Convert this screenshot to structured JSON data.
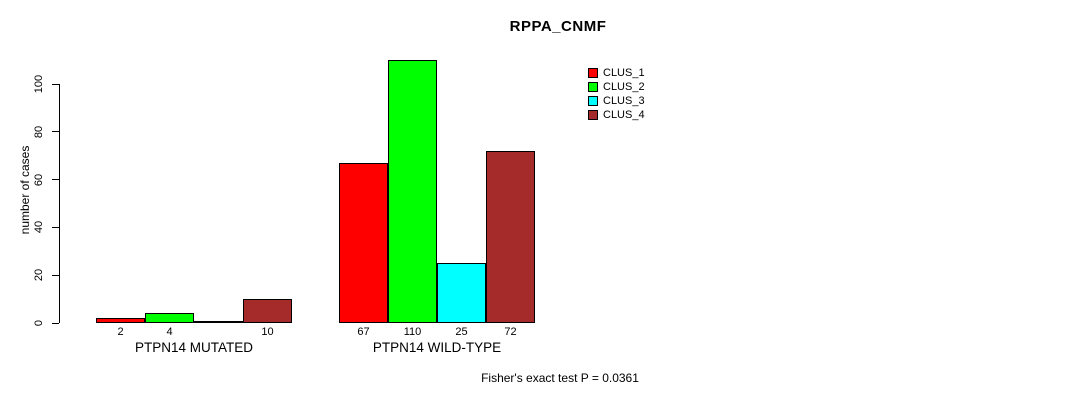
{
  "title": "RPPA_CNMF",
  "footer": "Fisher's exact test P = 0.0361",
  "chart_data": {
    "type": "bar",
    "title": "RPPA_CNMF",
    "xlabel": "",
    "ylabel": "number of cases",
    "ylim": [
      0,
      110
    ],
    "yticks": [
      0,
      20,
      40,
      60,
      80,
      100
    ],
    "grid": false,
    "legend_position": "top-right-inside",
    "categories": [
      "PTPN14 MUTATED",
      "PTPN14 WILD-TYPE"
    ],
    "series": [
      {
        "name": "CLUS_1",
        "color": "#FF0000",
        "values": [
          2,
          67
        ]
      },
      {
        "name": "CLUS_2",
        "color": "#00FF00",
        "values": [
          4,
          110
        ]
      },
      {
        "name": "CLUS_3",
        "color": "#00FFFF",
        "values": [
          0,
          25
        ]
      },
      {
        "name": "CLUS_4",
        "color": "#A52A2A",
        "values": [
          10,
          72
        ]
      }
    ],
    "bar_labels": [
      [
        "2",
        "4",
        "",
        "10"
      ],
      [
        "67",
        "110",
        "25",
        "72"
      ]
    ],
    "annotation": "Fisher's exact test P = 0.0361"
  }
}
